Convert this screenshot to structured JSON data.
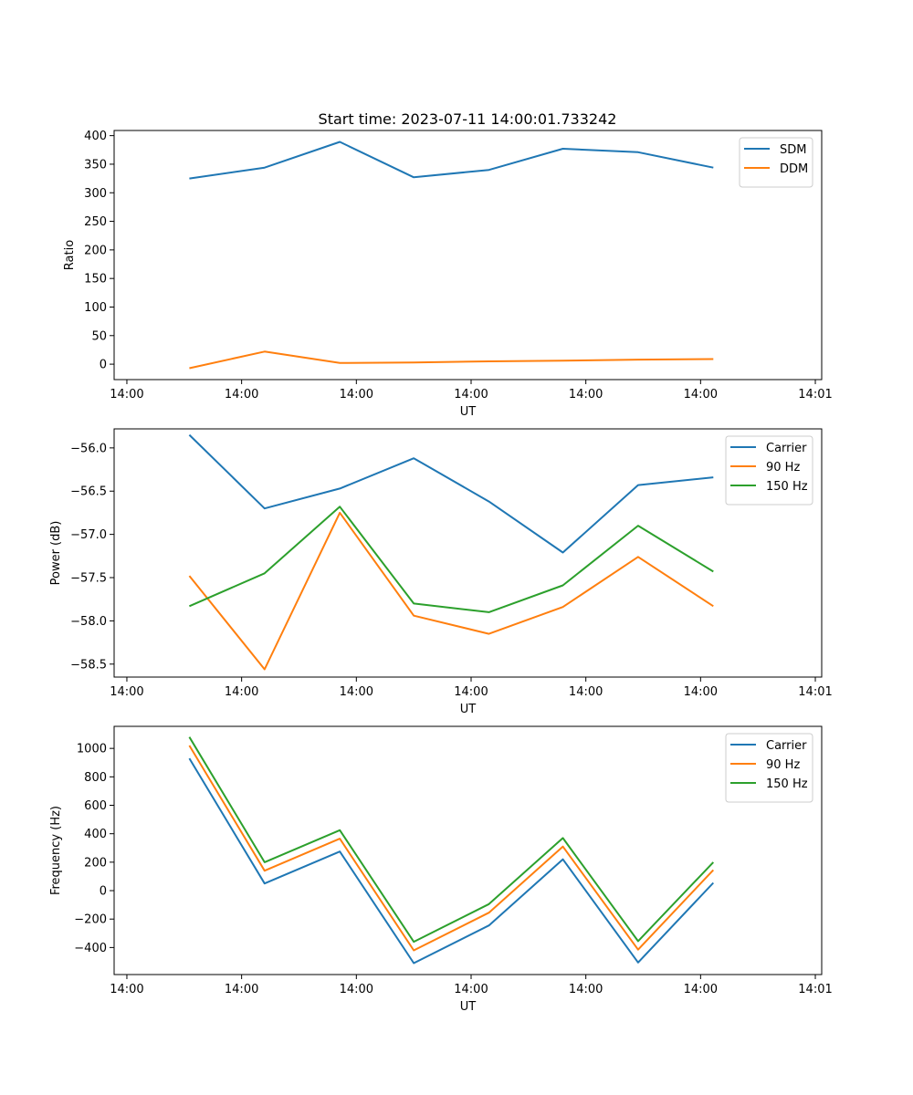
{
  "title": "Start time: 2023-07-11 14:00:01.733242",
  "colors": {
    "blue": "#1f77b4",
    "orange": "#ff7f0e",
    "green": "#2ca02c"
  },
  "chart_data": [
    {
      "type": "line",
      "ylabel": "Ratio",
      "xlabel": "UT",
      "x_seconds": [
        4.9,
        10.8,
        16.7,
        22.5,
        28.4,
        34.2,
        40.1,
        46.0
      ],
      "xlim": [
        -1.0,
        54.5
      ],
      "xticks": [
        0,
        9,
        18,
        27,
        36,
        45,
        54
      ],
      "xtick_labels": [
        "14:00",
        "14:00",
        "14:00",
        "14:00",
        "14:00",
        "14:00",
        "14:01"
      ],
      "ylim": [
        -27,
        409
      ],
      "yticks": [
        0,
        50,
        100,
        150,
        200,
        250,
        300,
        350,
        400
      ],
      "ytick_labels": [
        "0",
        "50",
        "100",
        "150",
        "200",
        "250",
        "300",
        "350",
        "400"
      ],
      "legend_position": "top-right",
      "series": [
        {
          "name": "SDM",
          "color": "#1f77b4",
          "values": [
            325,
            344,
            389,
            327,
            340,
            377,
            371,
            344
          ]
        },
        {
          "name": "DDM",
          "color": "#ff7f0e",
          "values": [
            -7,
            22,
            2,
            3,
            5,
            6,
            8,
            9
          ]
        }
      ]
    },
    {
      "type": "line",
      "ylabel": "Power (dB)",
      "xlabel": "UT",
      "x_seconds": [
        4.9,
        10.8,
        16.7,
        22.5,
        28.4,
        34.2,
        40.1,
        46.0
      ],
      "xlim": [
        -1.0,
        54.5
      ],
      "xticks": [
        0,
        9,
        18,
        27,
        36,
        45,
        54
      ],
      "xtick_labels": [
        "14:00",
        "14:00",
        "14:00",
        "14:00",
        "14:00",
        "14:00",
        "14:01"
      ],
      "ylim": [
        -58.65,
        -55.78
      ],
      "yticks": [
        -56.0,
        -56.5,
        -57.0,
        -57.5,
        -58.0,
        -58.5
      ],
      "ytick_labels": [
        "−56.0",
        "−56.5",
        "−57.0",
        "−57.5",
        "−58.0",
        "−58.5"
      ],
      "legend_position": "top-right",
      "series": [
        {
          "name": "Carrier",
          "color": "#1f77b4",
          "values": [
            -55.85,
            -56.7,
            -56.47,
            -56.12,
            -56.62,
            -57.21,
            -56.43,
            -56.34
          ]
        },
        {
          "name": "90 Hz",
          "color": "#ff7f0e",
          "values": [
            -57.48,
            -58.56,
            -56.75,
            -57.94,
            -58.15,
            -57.84,
            -57.26,
            -57.83
          ]
        },
        {
          "name": "150 Hz",
          "color": "#2ca02c",
          "values": [
            -57.83,
            -57.45,
            -56.68,
            -57.8,
            -57.9,
            -57.59,
            -56.9,
            -57.43
          ]
        }
      ]
    },
    {
      "type": "line",
      "ylabel": "Frequency (Hz)",
      "xlabel": "UT",
      "x_seconds": [
        4.9,
        10.8,
        16.7,
        22.5,
        28.4,
        34.2,
        40.1,
        46.0
      ],
      "xlim": [
        -1.0,
        54.5
      ],
      "xticks": [
        0,
        9,
        18,
        27,
        36,
        45,
        54
      ],
      "xtick_labels": [
        "14:00",
        "14:00",
        "14:00",
        "14:00",
        "14:00",
        "14:00",
        "14:01"
      ],
      "ylim": [
        -590,
        1155
      ],
      "yticks": [
        1000,
        800,
        600,
        400,
        200,
        0,
        -200,
        -400
      ],
      "ytick_labels": [
        "1000",
        "800",
        "600",
        "400",
        "200",
        "0",
        "−200",
        "−400"
      ],
      "legend_position": "top-right",
      "series": [
        {
          "name": "Carrier",
          "color": "#1f77b4",
          "values": [
            930,
            50,
            275,
            -510,
            -245,
            220,
            -505,
            55
          ]
        },
        {
          "name": "90 Hz",
          "color": "#ff7f0e",
          "values": [
            1020,
            140,
            365,
            -420,
            -155,
            310,
            -415,
            145
          ]
        },
        {
          "name": "150 Hz",
          "color": "#2ca02c",
          "values": [
            1080,
            200,
            425,
            -360,
            -95,
            370,
            -355,
            200
          ]
        }
      ]
    }
  ]
}
